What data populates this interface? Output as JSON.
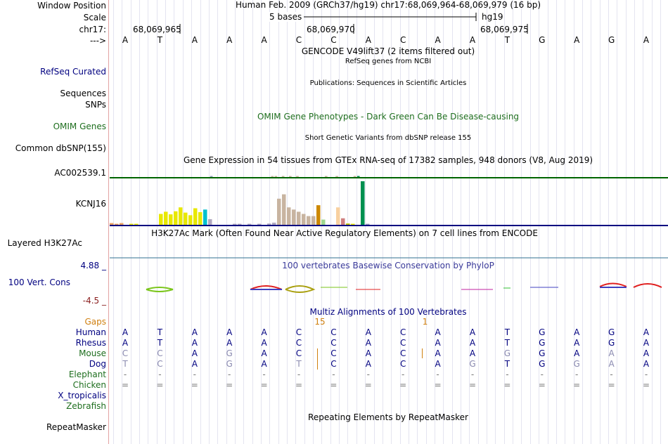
{
  "labels": {
    "window_position": "Window Position",
    "scale": "Scale",
    "chrom": "chr17:",
    "arrow": "--->",
    "refseq": "RefSeq Curated",
    "sequences": "Sequences",
    "snps": "SNPs",
    "omim": "OMIM Genes",
    "common_dbsnp": "Common dbSNP(155)",
    "ac002539": "AC002539.1",
    "kcnj16": "KCNJ16",
    "h3k27ac": "Layered H3K27Ac",
    "cons_max": "4.88 _",
    "cons": "100 Vert. Cons",
    "cons_min": "-4.5 _",
    "gaps": "Gaps",
    "human": "Human",
    "rhesus": "Rhesus",
    "mouse": "Mouse",
    "dog": "Dog",
    "elephant": "Elephant",
    "chicken": "Chicken",
    "xtrop": "X_tropicalis",
    "zebrafish": "Zebrafish",
    "repeatmasker": "RepeatMasker"
  },
  "position": {
    "title": "Human Feb. 2009 (GRCh37/hg19)   chr17:68,069,964-68,069,979 (16 bp)",
    "scale_text": "5 bases",
    "assembly": "hg19",
    "ticks": [
      "68,069,965",
      "68,069,970",
      "68,069,975"
    ]
  },
  "sequence": [
    "A",
    "T",
    "A",
    "A",
    "A",
    "C",
    "C",
    "A",
    "C",
    "A",
    "A",
    "T",
    "G",
    "A",
    "G",
    "A"
  ],
  "tracks": {
    "gencode": "GENCODE V49lift37 (2 items filtered out)",
    "refseq_sub": "RefSeq genes from NCBI",
    "publications": "Publications: Sequences in Scientific Articles",
    "omim_title": "OMIM Gene Phenotypes - Dark Green Can Be Disease-causing",
    "dbsnp_title": "Short Genetic Variants from dbSNP release 155",
    "gtex_title": "Gene Expression in 54 tissues from GTEx RNA-seq of 17382 samples, 948 donors (V8, Aug 2019)",
    "h3k27ac_title": "H3K27Ac Mark (Often Found Near Active Regulatory Elements) on 7 cell lines from ENCODE",
    "cons_title": "100 vertebrates Basewise Conservation by PhyloP",
    "multiz_title": "Multiz Alignments of 100 Vertebrates",
    "repeat_title": "Repeating Elements by RepeatMasker"
  },
  "gaps": [
    {
      "col": 6,
      "value": "15"
    },
    {
      "col": 9,
      "value": "1"
    }
  ],
  "alignment": {
    "human": [
      "A",
      "T",
      "A",
      "A",
      "A",
      "C",
      "C",
      "A",
      "C",
      "A",
      "A",
      "T",
      "G",
      "A",
      "G",
      "A"
    ],
    "rhesus": [
      "A",
      "T",
      "A",
      "A",
      "A",
      "C",
      "C",
      "A",
      "C",
      "A",
      "A",
      "T",
      "G",
      "A",
      "G",
      "A"
    ],
    "mouse": [
      "C",
      "C",
      "A",
      "G",
      "A",
      "C",
      "C",
      "A",
      "C",
      "A",
      "A",
      "G",
      "G",
      "A",
      "A",
      "A"
    ],
    "dog": [
      "T",
      "C",
      "A",
      "G",
      "A",
      "T",
      "C",
      "A",
      "C",
      "A",
      "G",
      "T",
      "G",
      "G",
      "A",
      "A"
    ],
    "elephant": [
      "-",
      "-",
      "-",
      "-",
      "-",
      "-",
      "-",
      "-",
      "-",
      "-",
      "-",
      "-",
      "-",
      "-",
      "-",
      "-"
    ],
    "chicken": [
      "=",
      "=",
      "=",
      "=",
      "=",
      "=",
      "=",
      "=",
      "=",
      "=",
      "=",
      "=",
      "=",
      "=",
      "=",
      "="
    ]
  },
  "alignment_dim": {
    "mouse": [
      0,
      1,
      3,
      11,
      14
    ],
    "dog": [
      0,
      1,
      3,
      5,
      10,
      13,
      14
    ]
  },
  "gtex": {
    "ac002539": [
      0,
      0,
      0,
      0,
      0,
      0,
      0,
      0,
      0,
      0,
      0,
      0,
      0,
      0,
      0,
      0,
      0,
      0,
      0,
      0,
      0,
      0,
      0,
      0,
      0,
      0,
      0,
      0,
      1,
      0,
      0,
      0,
      0,
      0,
      0,
      0,
      0,
      0,
      0,
      0,
      0,
      0,
      0,
      0,
      0,
      3,
      3,
      0,
      1,
      0,
      2,
      0,
      2,
      0,
      0,
      0,
      0,
      0,
      0,
      0,
      5,
      0,
      0,
      1,
      0,
      0,
      0,
      0,
      2,
      9,
      0,
      0
    ],
    "kcnj16": [
      4,
      2,
      4,
      0,
      2,
      1,
      0,
      0,
      0,
      0,
      25,
      30,
      24,
      31,
      40,
      28,
      22,
      38,
      29,
      35,
      13,
      0,
      0,
      0,
      0,
      1,
      1,
      0,
      1,
      0,
      2,
      0,
      3,
      5,
      60,
      70,
      40,
      35,
      30,
      25,
      20,
      20,
      45,
      12,
      0,
      0,
      40,
      15,
      3,
      2,
      0,
      100,
      1
    ]
  },
  "colors": {
    "accent_blue": "#000080",
    "title_blue": "#3a3a9a",
    "omim_green": "#1e6e1e",
    "gaps_orange": "#d08010",
    "cons_red": "#8b2020",
    "gtex_green": "#006400"
  }
}
